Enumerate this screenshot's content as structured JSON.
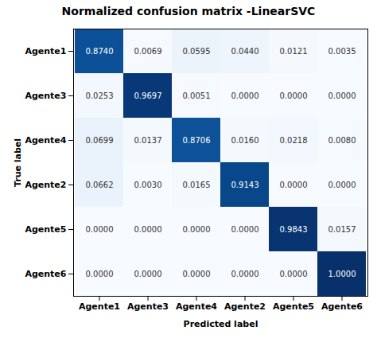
{
  "chart_data": {
    "type": "heatmap",
    "title": "Normalized confusion matrix -LinearSVC",
    "xlabel": "Predicted label",
    "ylabel": "True label",
    "categories": [
      "Agente1",
      "Agente3",
      "Agente4",
      "Agente2",
      "Agente5",
      "Agente6"
    ],
    "values": [
      [
        0.874,
        0.0069,
        0.0595,
        0.044,
        0.0121,
        0.0035
      ],
      [
        0.0253,
        0.9697,
        0.0051,
        0.0,
        0.0,
        0.0
      ],
      [
        0.0699,
        0.0137,
        0.8706,
        0.016,
        0.0218,
        0.008
      ],
      [
        0.0662,
        0.003,
        0.0165,
        0.9143,
        0.0,
        0.0
      ],
      [
        0.0,
        0.0,
        0.0,
        0.0,
        0.9843,
        0.0157
      ],
      [
        0.0,
        0.0,
        0.0,
        0.0,
        0.0,
        1.0
      ]
    ],
    "value_labels": [
      [
        "0.8740",
        "0.0069",
        "0.0595",
        "0.0440",
        "0.0121",
        "0.0035"
      ],
      [
        "0.0253",
        "0.9697",
        "0.0051",
        "0.0000",
        "0.0000",
        "0.0000"
      ],
      [
        "0.0699",
        "0.0137",
        "0.8706",
        "0.0160",
        "0.0218",
        "0.0080"
      ],
      [
        "0.0662",
        "0.0030",
        "0.0165",
        "0.9143",
        "0.0000",
        "0.0000"
      ],
      [
        "0.0000",
        "0.0000",
        "0.0000",
        "0.0000",
        "0.9843",
        "0.0157"
      ],
      [
        "0.0000",
        "0.0000",
        "0.0000",
        "0.0000",
        "0.0000",
        "1.0000"
      ]
    ],
    "color": "Blues",
    "color_range": [
      0,
      1
    ],
    "data_labels": true
  }
}
